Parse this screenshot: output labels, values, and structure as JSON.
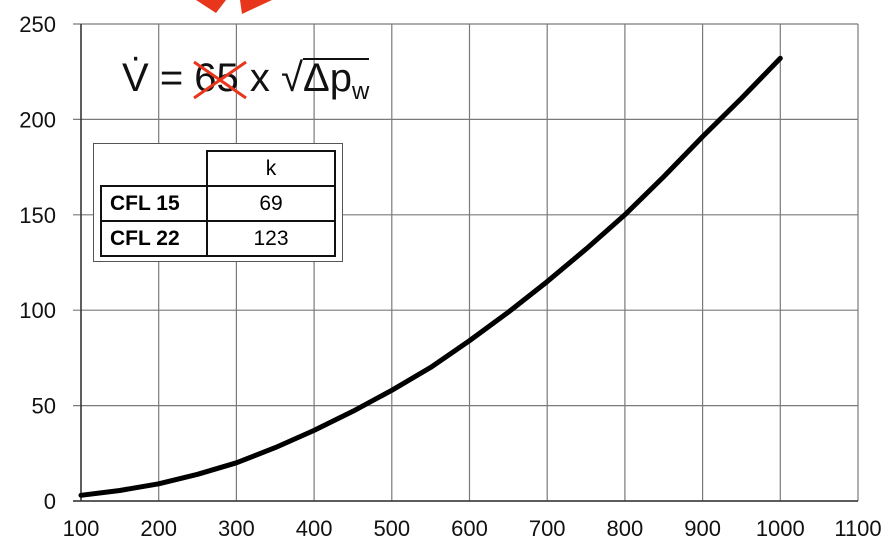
{
  "chart_data": {
    "type": "line",
    "title": "",
    "xlabel": "",
    "ylabel": "",
    "xlim": [
      100,
      1100
    ],
    "ylim": [
      0,
      250
    ],
    "x_ticks": [
      "100",
      "200",
      "300",
      "400",
      "500",
      "600",
      "700",
      "800",
      "900",
      "1000",
      "1100"
    ],
    "y_ticks": [
      "0",
      "50",
      "100",
      "150",
      "200",
      "250"
    ],
    "grid": true,
    "series": [
      {
        "x": [
          100,
          150,
          200,
          250,
          300,
          350,
          400,
          450,
          500,
          550,
          600,
          650,
          700,
          750,
          800,
          850,
          900,
          950,
          1000
        ],
        "y": [
          3,
          5.5,
          9,
          14,
          20,
          28,
          37,
          47,
          58,
          70,
          84,
          99,
          115,
          132,
          150,
          170,
          191,
          211,
          232
        ],
        "color": "#000000"
      }
    ]
  },
  "formula": {
    "lhs": "V",
    "equals": "=",
    "struck_value": "65",
    "times": "x",
    "radical": "√",
    "delta_p": "Δp",
    "subscript": "w"
  },
  "k_table": {
    "header": "k",
    "rows": [
      {
        "label": "CFL 15",
        "value": "69"
      },
      {
        "label": "CFL 22",
        "value": "123"
      }
    ]
  },
  "colors": {
    "annotation_red": "#e8361c",
    "grid": "#7a7a7a",
    "curve": "#000000"
  }
}
